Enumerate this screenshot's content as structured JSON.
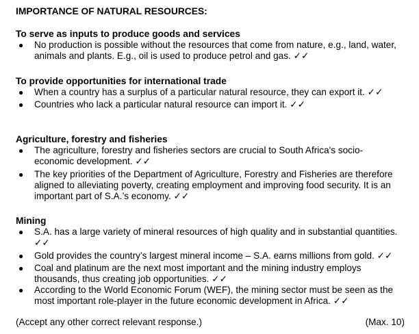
{
  "title": "IMPORTANCE OF NATURAL RESOURCES:",
  "sections": [
    {
      "heading": "To serve as inputs to produce goods and services",
      "bullets": [
        "No production is possible without the resources that come from nature, e.g., land, water, animals and plants. E.g., oil is used to produce petrol and gas. ✓✓"
      ]
    },
    {
      "heading": "To provide opportunities for international trade",
      "bullets": [
        "When a country has a surplus of a particular natural resource, they can export it. ✓✓",
        "Countries who lack a particular natural resource can import it. ✓✓"
      ]
    },
    {
      "heading": "Agriculture, forestry and fisheries",
      "bullets": [
        "The agriculture, forestry and fisheries sectors are crucial to South Africa's socio-economic development. ✓✓",
        "The key priorities of the Department of Agriculture, Forestry and Fisheries are therefore aligned to alleviating poverty, creating employment and improving food security. It is an important part of S.A.’s economy. ✓✓"
      ]
    },
    {
      "heading": "Mining",
      "bullets": [
        "S.A. has a large variety of mineral resources of high quality and in substantial quantities. ✓✓",
        "Gold provides the country’s largest mineral income – S.A. earns millions from gold. ✓✓",
        "Coal and platinum are the next most important and the mining industry employs thousands, thus creating job opportunities. ✓✓",
        "According to the World Economic Forum (WEF), the mining sector must be seen as the most important role-player in the future economic development in Africa. ✓✓"
      ]
    }
  ],
  "footer": {
    "note": "(Accept any other correct relevant response.)",
    "max": "(Max. 10)"
  }
}
